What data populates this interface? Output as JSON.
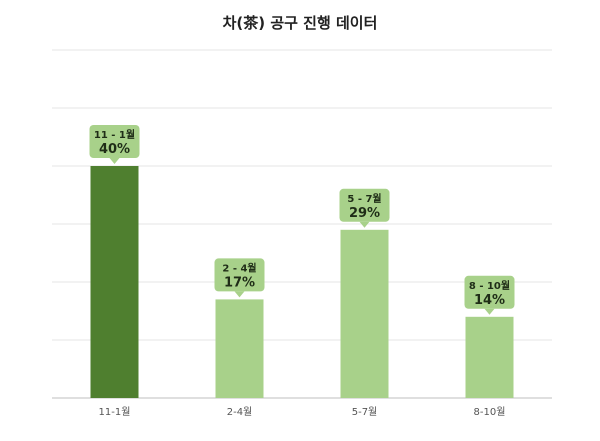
{
  "chart_data": {
    "type": "bar",
    "title": "차(茶) 공구 진행 데이터",
    "categories": [
      "11-1월",
      "2-4월",
      "5-7월",
      "8-10월"
    ],
    "callout_labels": [
      "11 - 1월",
      "2 - 4월",
      "5 - 7월",
      "8 - 10월"
    ],
    "values": [
      40,
      17,
      29,
      14
    ],
    "value_labels": [
      "40%",
      "17%",
      "29%",
      "14%"
    ],
    "highlight_index": 0,
    "ylim": [
      0,
      60
    ],
    "grid": true,
    "colors": {
      "highlight": "#4f7f2f",
      "bar": "#a8d18a",
      "callout": "#a8d18a",
      "grid": "#e6e6e6",
      "axis": "#bfbfbf"
    }
  }
}
